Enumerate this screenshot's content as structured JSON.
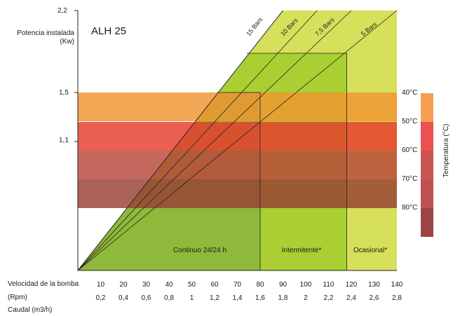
{
  "chart_data": {
    "type": "area",
    "title": "ALH 25",
    "ylabel_line1": "Potencia instalada",
    "ylabel_line2": "(Kw)",
    "y_ticks": [
      "2,2",
      "1,5",
      "1,1"
    ],
    "x_row1_label": "Velocidad de la bomba",
    "x_row2_label": "(Rpm)",
    "x_row3_label": "Caudal (m3/h)",
    "x_speed": [
      "10",
      "20",
      "30",
      "40",
      "50",
      "60",
      "70",
      "80",
      "90",
      "100",
      "110",
      "120",
      "130",
      "140"
    ],
    "x_flow": [
      "0,2",
      "0,4",
      "0,6",
      "0,8",
      "1",
      "1,2",
      "1,4",
      "1,6",
      "1,8",
      "2",
      "2,2",
      "2,4",
      "2,6",
      "2,8"
    ],
    "x_range": [
      0,
      140
    ],
    "y_range_kw": [
      0,
      2.2
    ],
    "pressure_lines": [
      {
        "label": "15 Bars",
        "speed_at_2_2kw": 90
      },
      {
        "label": "10 Bars",
        "speed_at_2_2kw": 105
      },
      {
        "label": "7,5 Bars",
        "speed_at_2_2kw": 120
      },
      {
        "label": "5 Bars",
        "speed_at_2_2kw": 140
      }
    ],
    "zones": [
      {
        "label": "Continuo 24/24 h",
        "speed_max": 80,
        "color": "#8fb93a"
      },
      {
        "label": "Intermitente*",
        "speed_max": 118,
        "color": "#a9cf32"
      },
      {
        "label": "Ocasional*",
        "speed_max": 140,
        "color": "#d6e05a"
      }
    ],
    "temperature_title": "Temperatura (°C)",
    "temperature_bands": [
      {
        "label": "40°C",
        "color": "#f5a050"
      },
      {
        "label": "50°C",
        "color": "#ec5050"
      },
      {
        "label": "60°C",
        "color": "#c95552"
      },
      {
        "label": "70°C",
        "color": "#bd5050"
      },
      {
        "label": "80°C",
        "color": "#9c4444"
      }
    ]
  }
}
